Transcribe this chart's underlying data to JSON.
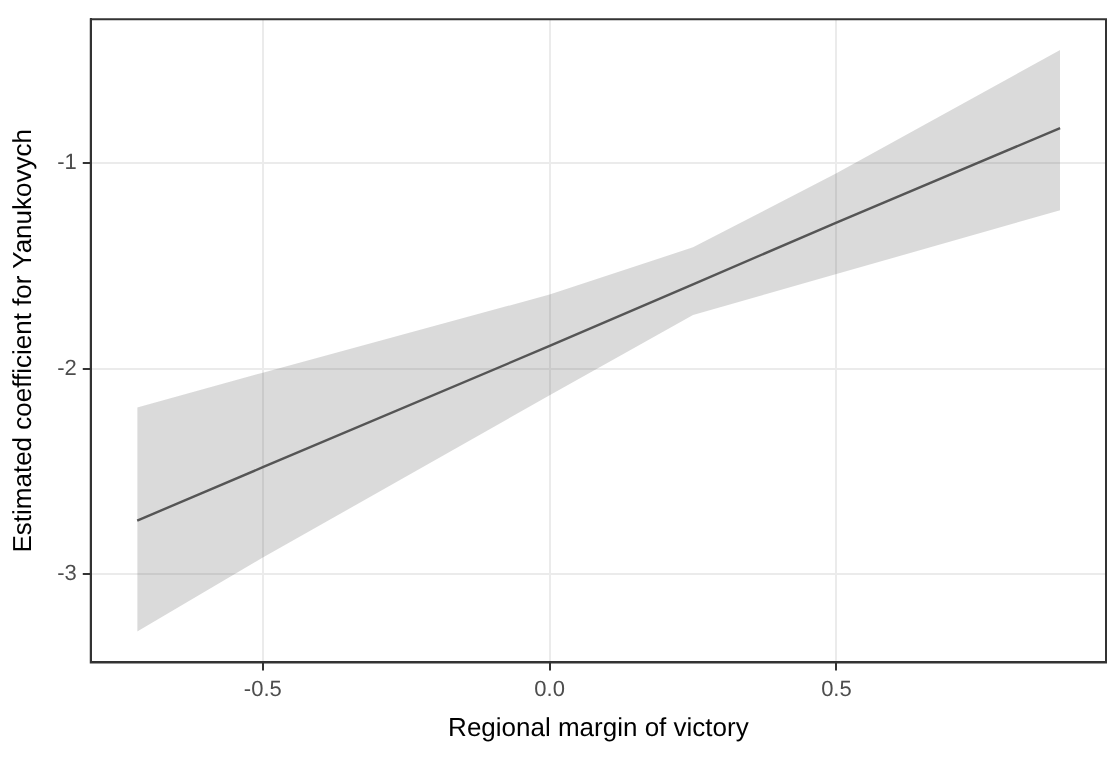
{
  "chart_data": {
    "type": "line",
    "xlabel": "Regional margin of victory",
    "ylabel": "Estimated coefficient for Yanukovych",
    "x": [
      -0.719,
      -0.5,
      0,
      0.25,
      0.5,
      0.89
    ],
    "series": [
      {
        "color": "#555555",
        "values": [
          -2.74,
          -2.48,
          -1.89,
          -1.59,
          -1.29,
          -0.83
        ],
        "lower": [
          -3.28,
          -2.92,
          -2.13,
          -1.74,
          -1.54,
          -1.23
        ],
        "upper": [
          -2.19,
          -2.02,
          -1.64,
          -1.41,
          -1.05,
          -0.45
        ]
      }
    ],
    "xlim": [
      -0.8,
      0.97
    ],
    "ylim": [
      -3.43,
      -0.3
    ],
    "xticks": [
      -0.5,
      {
        "value": 0,
        "label": "0.0"
      },
      0.5
    ],
    "yticks": [
      -3,
      -2,
      -1
    ],
    "grid": true,
    "legend": false,
    "marker": "none",
    "line_style": "solid"
  }
}
